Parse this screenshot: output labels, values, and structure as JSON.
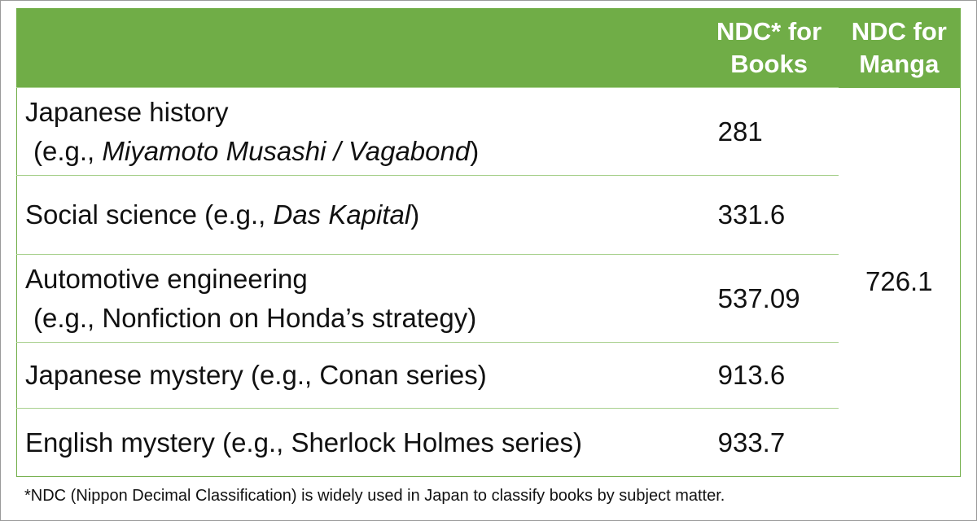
{
  "header": {
    "col_books_line1": "NDC* for",
    "col_books_line2": "Books",
    "col_manga_line1": "NDC for",
    "col_manga_line2": "Manga"
  },
  "rows": [
    {
      "subject": "Japanese history",
      "example_prefix": "(e.g., ",
      "example_italic": "Miyamoto Musashi / Vagabond",
      "example_suffix": ")",
      "ndc_books": "281"
    },
    {
      "subject": "Social science ",
      "example_prefix": "(e.g., ",
      "example_italic": "Das Kapital",
      "example_suffix": ")",
      "ndc_books": "331.6"
    },
    {
      "subject": "Automotive engineering",
      "example": "(e.g., Nonfiction on Honda’s strategy)",
      "ndc_books": "537.09"
    },
    {
      "subject": "Japanese mystery ",
      "example": "(e.g., Conan series)",
      "ndc_books": "913.6"
    },
    {
      "subject": "English mystery ",
      "example": "(e.g., Sherlock Holmes series)",
      "ndc_books": "933.7"
    }
  ],
  "ndc_manga": "726.1",
  "footnote": "*NDC (Nippon Decimal Classification) is widely used in Japan to classify books by subject matter.",
  "colors": {
    "header_bg": "#70ad47",
    "header_text": "#ffffff",
    "row_divider": "#a8d08d"
  }
}
